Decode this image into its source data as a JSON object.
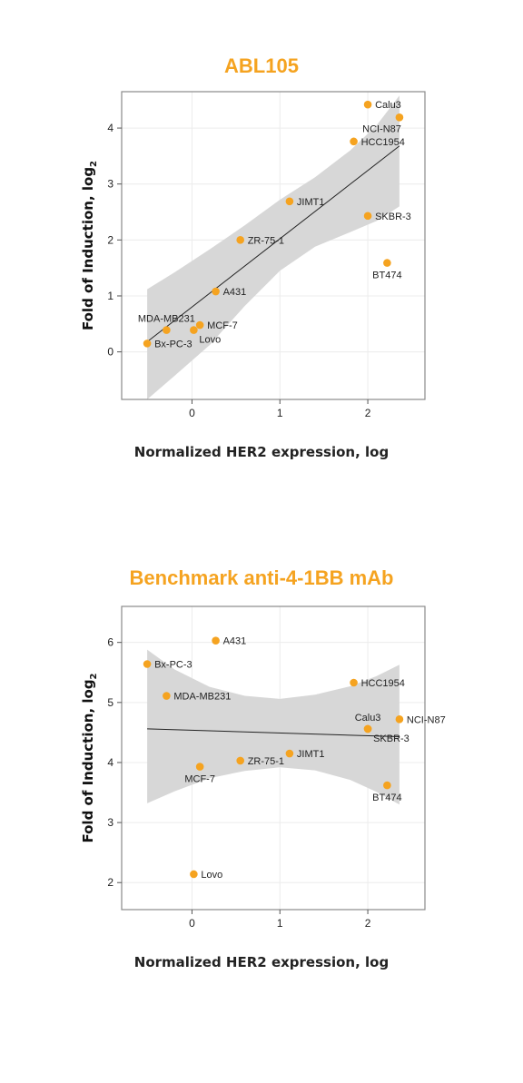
{
  "colors": {
    "title": "#f5a320",
    "point": "#f5a320",
    "band": "#d7d7d7",
    "frame": "#8a8a8a",
    "grid": "#ececec"
  },
  "chart_data": [
    {
      "type": "scatter",
      "title": "ABL105",
      "xlabel": "Normalized HER2 expression, log",
      "ylabel": "Fold of Induction, log",
      "ylabel_sub": "2",
      "xlim": [
        -0.8,
        2.65
      ],
      "ylim": [
        -0.85,
        4.65
      ],
      "xticks": [
        0,
        1,
        2
      ],
      "yticks": [
        0,
        1,
        2,
        3,
        4
      ],
      "grid": true,
      "points": [
        {
          "label": "Calu3",
          "x": 2.0,
          "y": 4.42,
          "pos": "right"
        },
        {
          "label": "NCI-N87",
          "x": 2.36,
          "y": 4.19,
          "pos": "below-left"
        },
        {
          "label": "HCC1954",
          "x": 1.84,
          "y": 3.76,
          "pos": "right"
        },
        {
          "label": "JIMT1",
          "x": 1.11,
          "y": 2.69,
          "pos": "right"
        },
        {
          "label": "SKBR-3",
          "x": 2.0,
          "y": 2.43,
          "pos": "right"
        },
        {
          "label": "ZR-75-1",
          "x": 0.55,
          "y": 2.0,
          "pos": "right"
        },
        {
          "label": "BT474",
          "x": 2.22,
          "y": 1.59,
          "pos": "below"
        },
        {
          "label": "A431",
          "x": 0.27,
          "y": 1.08,
          "pos": "right"
        },
        {
          "label": "MCF-7",
          "x": 0.09,
          "y": 0.48,
          "pos": "right"
        },
        {
          "label": "MDA-MB231",
          "x": -0.29,
          "y": 0.39,
          "pos": "above"
        },
        {
          "label": "Lovo",
          "x": 0.02,
          "y": 0.39,
          "pos": "below-right"
        },
        {
          "label": "Bx-PC-3",
          "x": -0.51,
          "y": 0.15,
          "pos": "right"
        }
      ],
      "fit": {
        "x": [
          -0.51,
          2.36
        ],
        "y": [
          0.18,
          3.68
        ]
      },
      "band": {
        "x": [
          -0.51,
          -0.2,
          0.2,
          0.6,
          1.0,
          1.4,
          1.8,
          2.1,
          2.36
        ],
        "upper": [
          1.12,
          1.42,
          1.83,
          2.26,
          2.72,
          3.12,
          3.6,
          4.05,
          4.58
        ],
        "lower": [
          -0.85,
          -0.43,
          0.12,
          0.82,
          1.45,
          1.88,
          2.14,
          2.34,
          2.6
        ]
      }
    },
    {
      "type": "scatter",
      "title": "Benchmark anti-4-1BB mAb",
      "xlabel": "Normalized HER2 expression, log",
      "ylabel": "Fold of Induction, log",
      "ylabel_sub": "2",
      "xlim": [
        -0.8,
        2.65
      ],
      "ylim": [
        1.55,
        6.6
      ],
      "xticks": [
        0,
        1,
        2
      ],
      "yticks": [
        2,
        3,
        4,
        5,
        6
      ],
      "grid": true,
      "points": [
        {
          "label": "A431",
          "x": 0.27,
          "y": 6.03,
          "pos": "right"
        },
        {
          "label": "Bx-PC-3",
          "x": -0.51,
          "y": 5.64,
          "pos": "right"
        },
        {
          "label": "MDA-MB231",
          "x": -0.29,
          "y": 5.11,
          "pos": "right"
        },
        {
          "label": "HCC1954",
          "x": 1.84,
          "y": 5.33,
          "pos": "right"
        },
        {
          "label": "Calu3",
          "x": 2.0,
          "y": 4.56,
          "pos": "above"
        },
        {
          "label": "NCI-N87",
          "x": 2.36,
          "y": 4.72,
          "pos": "right"
        },
        {
          "label": "SKBR-3",
          "x": 2.0,
          "y": 4.56,
          "pos": "below-right"
        },
        {
          "label": "JIMT1",
          "x": 1.11,
          "y": 4.15,
          "pos": "right"
        },
        {
          "label": "ZR-75-1",
          "x": 0.55,
          "y": 4.03,
          "pos": "right"
        },
        {
          "label": "MCF-7",
          "x": 0.09,
          "y": 3.93,
          "pos": "below"
        },
        {
          "label": "BT474",
          "x": 2.22,
          "y": 3.62,
          "pos": "below"
        },
        {
          "label": "Lovo",
          "x": 0.02,
          "y": 2.14,
          "pos": "right"
        }
      ],
      "fit": {
        "x": [
          -0.51,
          2.36
        ],
        "y": [
          4.56,
          4.43
        ]
      },
      "band": {
        "x": [
          -0.51,
          -0.2,
          0.2,
          0.6,
          1.0,
          1.4,
          1.8,
          2.1,
          2.36
        ],
        "upper": [
          5.88,
          5.55,
          5.26,
          5.11,
          5.06,
          5.13,
          5.27,
          5.44,
          5.63
        ],
        "lower": [
          3.32,
          3.52,
          3.74,
          3.86,
          3.92,
          3.87,
          3.71,
          3.51,
          3.3
        ]
      }
    }
  ]
}
